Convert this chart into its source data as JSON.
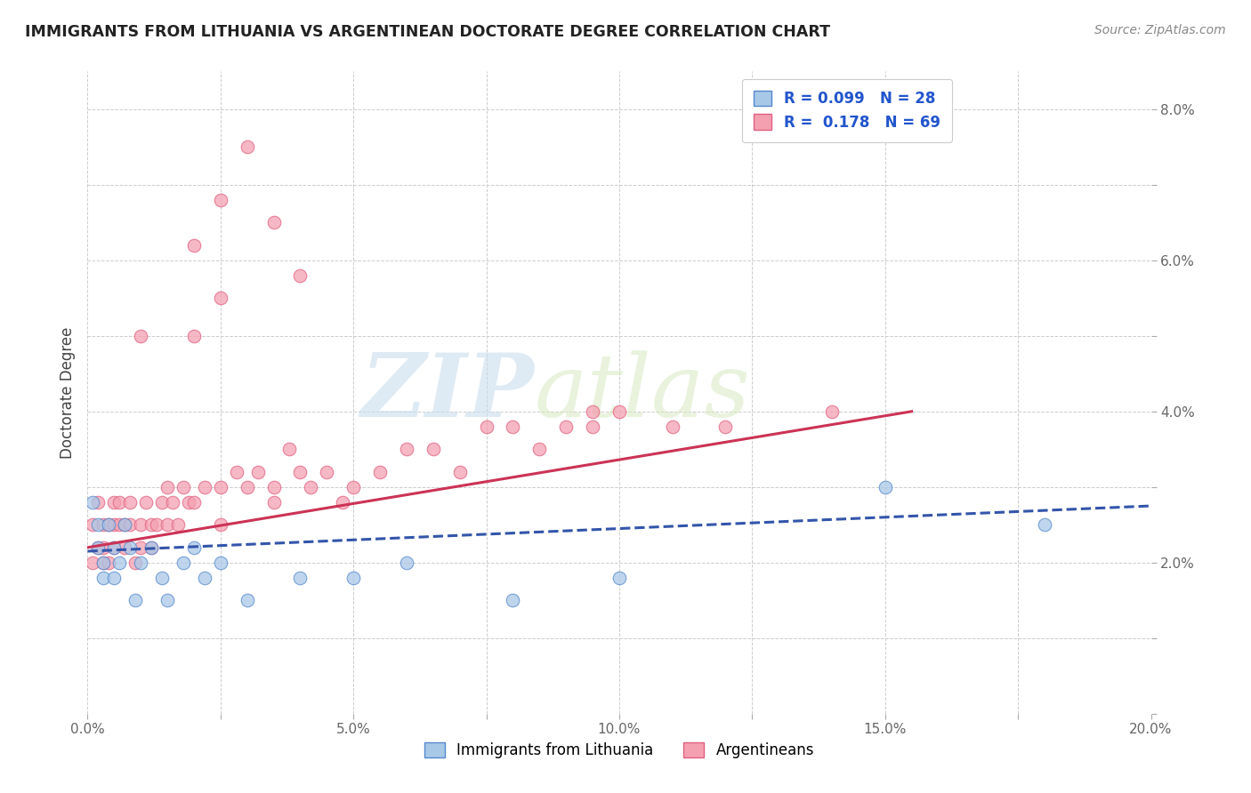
{
  "title": "IMMIGRANTS FROM LITHUANIA VS ARGENTINEAN DOCTORATE DEGREE CORRELATION CHART",
  "source": "Source: ZipAtlas.com",
  "ylabel": "Doctorate Degree",
  "xlim": [
    0.0,
    0.2
  ],
  "ylim": [
    0.0,
    0.085
  ],
  "xticks": [
    0.0,
    0.025,
    0.05,
    0.075,
    0.1,
    0.125,
    0.15,
    0.175,
    0.2
  ],
  "xticklabels": [
    "0.0%",
    "",
    "5.0%",
    "",
    "10.0%",
    "",
    "15.0%",
    "",
    "20.0%"
  ],
  "yticks": [
    0.0,
    0.01,
    0.02,
    0.03,
    0.04,
    0.05,
    0.06,
    0.07,
    0.08
  ],
  "yticklabels": [
    "",
    "",
    "2.0%",
    "",
    "4.0%",
    "",
    "6.0%",
    "",
    "8.0%"
  ],
  "blue_color": "#A8C8E8",
  "blue_edge": "#5588CC",
  "pink_color": "#F4A0B0",
  "pink_edge": "#E06080",
  "blue_line_color": "#3355AA",
  "pink_line_color": "#CC3355",
  "watermark_zip": "ZIP",
  "watermark_atlas": "atlas",
  "legend_label_blue": "Immigrants from Lithuania",
  "legend_label_pink": "Argentineans",
  "blue_x": [
    0.001,
    0.002,
    0.002,
    0.003,
    0.003,
    0.004,
    0.005,
    0.005,
    0.006,
    0.007,
    0.008,
    0.009,
    0.01,
    0.012,
    0.014,
    0.015,
    0.018,
    0.02,
    0.022,
    0.025,
    0.03,
    0.04,
    0.05,
    0.06,
    0.08,
    0.1,
    0.15,
    0.18
  ],
  "blue_y": [
    0.028,
    0.025,
    0.022,
    0.02,
    0.018,
    0.025,
    0.022,
    0.018,
    0.02,
    0.025,
    0.022,
    0.015,
    0.02,
    0.022,
    0.018,
    0.015,
    0.02,
    0.022,
    0.018,
    0.02,
    0.015,
    0.018,
    0.018,
    0.02,
    0.015,
    0.018,
    0.03,
    0.025
  ],
  "pink_x": [
    0.001,
    0.001,
    0.002,
    0.002,
    0.003,
    0.003,
    0.003,
    0.004,
    0.004,
    0.005,
    0.005,
    0.005,
    0.006,
    0.006,
    0.007,
    0.007,
    0.008,
    0.008,
    0.009,
    0.01,
    0.01,
    0.011,
    0.012,
    0.012,
    0.013,
    0.014,
    0.015,
    0.015,
    0.016,
    0.017,
    0.018,
    0.019,
    0.02,
    0.022,
    0.025,
    0.025,
    0.028,
    0.03,
    0.032,
    0.035,
    0.035,
    0.038,
    0.04,
    0.042,
    0.045,
    0.048,
    0.05,
    0.055,
    0.06,
    0.065,
    0.07,
    0.075,
    0.08,
    0.085,
    0.09,
    0.095,
    0.1,
    0.11,
    0.12,
    0.14,
    0.03,
    0.025,
    0.02,
    0.035,
    0.04,
    0.025,
    0.02,
    0.01,
    0.095
  ],
  "pink_y": [
    0.025,
    0.02,
    0.028,
    0.022,
    0.025,
    0.02,
    0.022,
    0.025,
    0.02,
    0.028,
    0.025,
    0.022,
    0.028,
    0.025,
    0.025,
    0.022,
    0.028,
    0.025,
    0.02,
    0.025,
    0.022,
    0.028,
    0.025,
    0.022,
    0.025,
    0.028,
    0.03,
    0.025,
    0.028,
    0.025,
    0.03,
    0.028,
    0.028,
    0.03,
    0.03,
    0.025,
    0.032,
    0.03,
    0.032,
    0.03,
    0.028,
    0.035,
    0.032,
    0.03,
    0.032,
    0.028,
    0.03,
    0.032,
    0.035,
    0.035,
    0.032,
    0.038,
    0.038,
    0.035,
    0.038,
    0.038,
    0.04,
    0.038,
    0.038,
    0.04,
    0.075,
    0.068,
    0.062,
    0.065,
    0.058,
    0.055,
    0.05,
    0.05,
    0.04
  ],
  "blue_trend_x": [
    0.0,
    0.2
  ],
  "blue_trend_y": [
    0.0215,
    0.0275
  ],
  "pink_trend_x": [
    0.0,
    0.155
  ],
  "pink_trend_y": [
    0.022,
    0.04
  ]
}
